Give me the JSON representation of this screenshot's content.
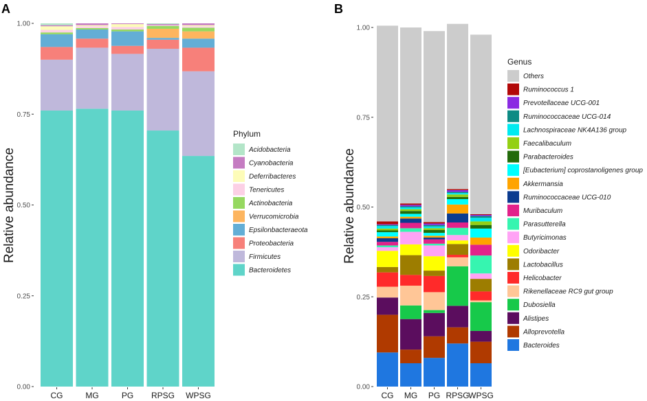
{
  "chart_data": [
    {
      "type": "bar",
      "stacked": true,
      "panel_label": "A",
      "ylabel": "Relative abundance",
      "ylim": [
        0,
        1
      ],
      "yticks": [
        "0.00",
        "0.25",
        "0.50",
        "0.75",
        "1.00"
      ],
      "categories": [
        "CG",
        "MG",
        "PG",
        "RPSG",
        "WPSG"
      ],
      "legend_title": "Phylum",
      "series": [
        {
          "name": "Bacteroidetes",
          "color": "#5fd4c9",
          "values": [
            0.76,
            0.765,
            0.76,
            0.705,
            0.635
          ]
        },
        {
          "name": "Firmicutes",
          "color": "#bfb8db",
          "values": [
            0.14,
            0.168,
            0.156,
            0.225,
            0.233
          ]
        },
        {
          "name": "Proteobacteria",
          "color": "#f7807a",
          "values": [
            0.035,
            0.025,
            0.022,
            0.025,
            0.065
          ]
        },
        {
          "name": "Epsilonbacteraeota",
          "color": "#63aed6",
          "values": [
            0.035,
            0.025,
            0.04,
            0.005,
            0.025
          ]
        },
        {
          "name": "Verrucomicrobia",
          "color": "#fdb55f",
          "values": [
            0.0,
            0.0,
            0.0,
            0.025,
            0.02
          ]
        },
        {
          "name": "Actinobacteria",
          "color": "#96d860",
          "values": [
            0.005,
            0.004,
            0.005,
            0.008,
            0.01
          ]
        },
        {
          "name": "Tenericutes",
          "color": "#fcd0e5",
          "values": [
            0.007,
            0.005,
            0.007,
            0.002,
            0.004
          ]
        },
        {
          "name": "Deferribacteres",
          "color": "#fdfcb8",
          "values": [
            0.01,
            0.003,
            0.008,
            0.0,
            0.003
          ]
        },
        {
          "name": "Cyanobacteria",
          "color": "#c57cc2",
          "values": [
            0.003,
            0.005,
            0.002,
            0.003,
            0.005
          ]
        },
        {
          "name": "Acidobacteria",
          "color": "#b3e5c8",
          "values": [
            0.005,
            0.0,
            0.0,
            0.002,
            0.0
          ]
        }
      ]
    },
    {
      "type": "bar",
      "stacked": true,
      "panel_label": "B",
      "ylabel": "Relative abundance",
      "ylim": [
        0,
        1
      ],
      "yticks": [
        "0.00",
        "0.25",
        "0.50",
        "0.75",
        "1.00"
      ],
      "categories": [
        "CG",
        "MG",
        "PG",
        "RPSG",
        "WPSG"
      ],
      "legend_title": "Genus",
      "series": [
        {
          "name": "Bacteroides",
          "color": "#1f77e0",
          "values": [
            0.095,
            0.065,
            0.08,
            0.12,
            0.065
          ]
        },
        {
          "name": "Alloprevotella",
          "color": "#b03a00",
          "values": [
            0.105,
            0.038,
            0.06,
            0.045,
            0.06
          ]
        },
        {
          "name": "Alistipes",
          "color": "#5b0d5e",
          "values": [
            0.048,
            0.085,
            0.065,
            0.06,
            0.03
          ]
        },
        {
          "name": "Dubosiella",
          "color": "#17c94a",
          "values": [
            0.0,
            0.038,
            0.008,
            0.11,
            0.08
          ]
        },
        {
          "name": "Rikenellaceae RC9 gut group",
          "color": "#ffc697",
          "values": [
            0.03,
            0.055,
            0.05,
            0.025,
            0.005
          ]
        },
        {
          "name": "Helicobacter",
          "color": "#ff2a2a",
          "values": [
            0.04,
            0.03,
            0.045,
            0.007,
            0.025
          ]
        },
        {
          "name": "Lactobacillus",
          "color": "#9d7d00",
          "values": [
            0.015,
            0.055,
            0.015,
            0.03,
            0.035
          ]
        },
        {
          "name": "Odoribacter",
          "color": "#ffff00",
          "values": [
            0.045,
            0.03,
            0.04,
            0.01,
            0.0
          ]
        },
        {
          "name": "Butyricimonas",
          "color": "#ffa3f5",
          "values": [
            0.01,
            0.035,
            0.03,
            0.015,
            0.015
          ]
        },
        {
          "name": "Parasutterella",
          "color": "#36f5b0",
          "values": [
            0.005,
            0.01,
            0.005,
            0.02,
            0.05
          ]
        },
        {
          "name": "Muribaculum",
          "color": "#e2228a",
          "values": [
            0.01,
            0.015,
            0.012,
            0.015,
            0.03
          ]
        },
        {
          "name": "Ruminococcaceae UCG-010",
          "color": "#0b3b8f",
          "values": [
            0.01,
            0.012,
            0.005,
            0.025,
            0.0
          ]
        },
        {
          "name": "Akkermansia",
          "color": "#ffa400",
          "values": [
            0.005,
            0.005,
            0.005,
            0.025,
            0.02
          ]
        },
        {
          "name": "[Eubacterium] coprostanoligenes group",
          "color": "#00ffff",
          "values": [
            0.012,
            0.008,
            0.008,
            0.015,
            0.025
          ]
        },
        {
          "name": "Parabacteroides",
          "color": "#236b0b",
          "values": [
            0.005,
            0.008,
            0.008,
            0.006,
            0.01
          ]
        },
        {
          "name": "Faecalibaculum",
          "color": "#94d014",
          "values": [
            0.005,
            0.005,
            0.005,
            0.007,
            0.01
          ]
        },
        {
          "name": "Lachnospiraceae NK4A136 group",
          "color": "#00eaf0",
          "values": [
            0.007,
            0.005,
            0.005,
            0.004,
            0.01
          ]
        },
        {
          "name": "Ruminococcaceae UCG-014",
          "color": "#0e8b84",
          "values": [
            0.003,
            0.003,
            0.004,
            0.003,
            0.005
          ]
        },
        {
          "name": "Prevotellaceae UCG-001",
          "color": "#8a2be2",
          "values": [
            0.002,
            0.004,
            0.004,
            0.005,
            0.003
          ]
        },
        {
          "name": "Ruminococcus 1",
          "color": "#b20808",
          "values": [
            0.008,
            0.004,
            0.004,
            0.003,
            0.002
          ]
        },
        {
          "name": "Others",
          "color": "#cccccc",
          "values": [
            0.545,
            0.49,
            0.532,
            0.46,
            0.5
          ]
        }
      ]
    }
  ]
}
